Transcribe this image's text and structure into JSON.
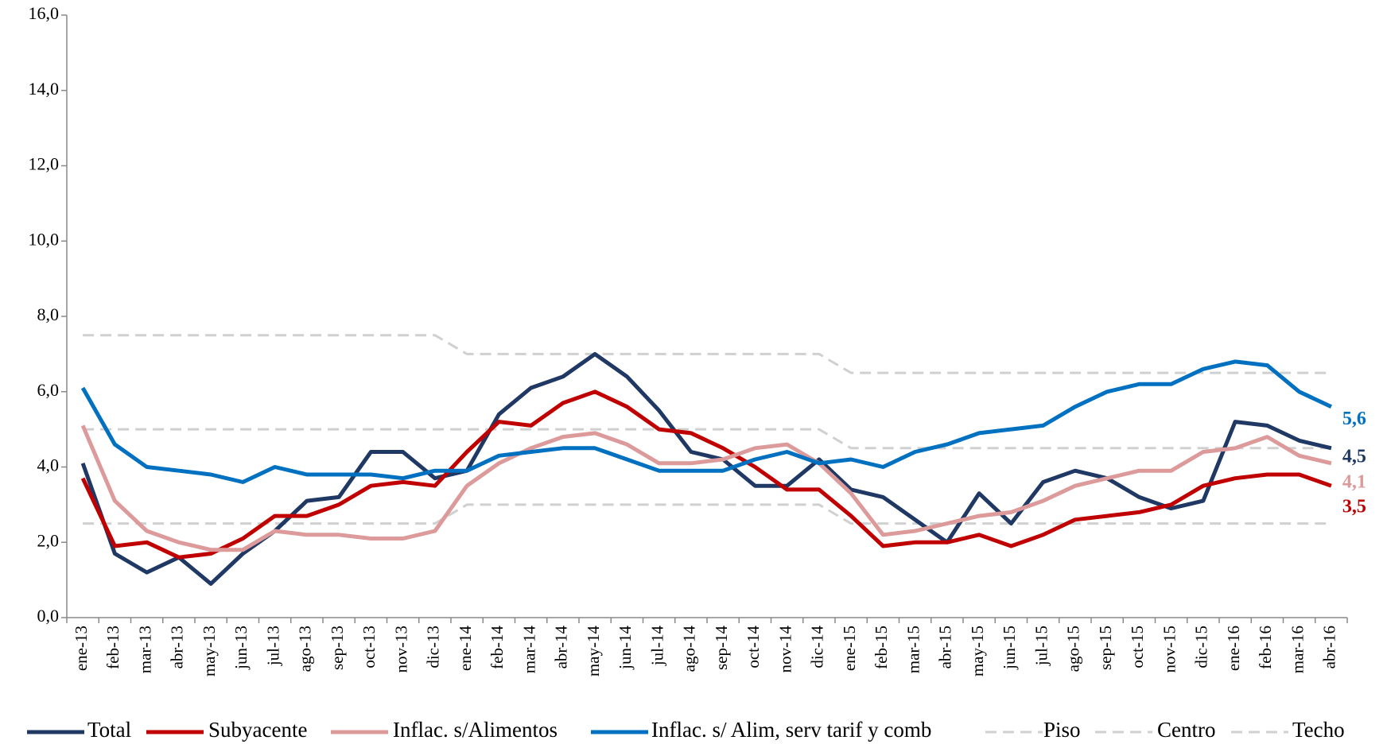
{
  "chart_data": {
    "type": "line",
    "categories": [
      "ene-13",
      "feb-13",
      "mar-13",
      "abr-13",
      "may-13",
      "jun-13",
      "jul-13",
      "ago-13",
      "sep-13",
      "oct-13",
      "nov-13",
      "dic-13",
      "ene-14",
      "feb-14",
      "mar-14",
      "abr-14",
      "may-14",
      "jun-14",
      "jul-14",
      "ago-14",
      "sep-14",
      "oct-14",
      "nov-14",
      "dic-14",
      "ene-15",
      "feb-15",
      "mar-15",
      "abr-15",
      "may-15",
      "jun-15",
      "jul-15",
      "ago-15",
      "sep-15",
      "oct-15",
      "nov-15",
      "dic-15",
      "ene-16",
      "feb-16",
      "mar-16",
      "abr-16"
    ],
    "ylim": [
      0,
      16
    ],
    "yticks": [
      {
        "value": 0,
        "label": "0,0"
      },
      {
        "value": 2,
        "label": "2,0"
      },
      {
        "value": 4,
        "label": "4,0"
      },
      {
        "value": 6,
        "label": "6,0"
      },
      {
        "value": 8,
        "label": "8,0"
      },
      {
        "value": 10,
        "label": "10,0"
      },
      {
        "value": 12,
        "label": "12,0"
      },
      {
        "value": 14,
        "label": "14,0"
      },
      {
        "value": 16,
        "label": "16,0"
      }
    ],
    "series": [
      {
        "name": "Total",
        "color": "#1f3864",
        "values": [
          4.1,
          1.7,
          1.2,
          1.6,
          0.9,
          1.7,
          2.3,
          3.1,
          3.2,
          4.4,
          4.4,
          3.7,
          3.9,
          5.4,
          6.1,
          6.4,
          7.0,
          6.4,
          5.5,
          4.4,
          4.2,
          3.5,
          3.5,
          4.2,
          3.4,
          3.2,
          2.6,
          2.0,
          3.3,
          2.5,
          3.6,
          3.9,
          3.7,
          3.2,
          2.9,
          3.1,
          5.2,
          5.1,
          4.7,
          4.5
        ],
        "value_labels": [
          null,
          null,
          null,
          null,
          null,
          null,
          null,
          null,
          null,
          null,
          null,
          null,
          null,
          null,
          null,
          null,
          null,
          null,
          null,
          null,
          null,
          null,
          null,
          null,
          null,
          null,
          null,
          null,
          null,
          null,
          null,
          null,
          null,
          null,
          null,
          null,
          null,
          null,
          null,
          "4,5"
        ]
      },
      {
        "name": "Subyacente",
        "color": "#c00000",
        "values": [
          3.7,
          1.9,
          2.0,
          1.6,
          1.7,
          2.1,
          2.7,
          2.7,
          3.0,
          3.5,
          3.6,
          3.5,
          4.4,
          5.2,
          5.1,
          5.7,
          6.0,
          5.6,
          5.0,
          4.9,
          4.5,
          4.0,
          3.4,
          3.4,
          2.7,
          1.9,
          2.0,
          2.0,
          2.2,
          1.9,
          2.2,
          2.6,
          2.7,
          2.8,
          3.0,
          3.5,
          3.7,
          3.8,
          3.8,
          3.5
        ],
        "value_labels": [
          null,
          null,
          null,
          null,
          null,
          null,
          null,
          null,
          null,
          null,
          null,
          null,
          null,
          null,
          null,
          null,
          null,
          null,
          null,
          null,
          null,
          null,
          null,
          null,
          null,
          null,
          null,
          null,
          null,
          null,
          null,
          null,
          null,
          null,
          null,
          null,
          null,
          null,
          null,
          "3,5"
        ]
      },
      {
        "name": "Inflac. s/Alimentos",
        "color": "#dc9a9a",
        "values": [
          5.1,
          3.1,
          2.3,
          2.0,
          1.8,
          1.8,
          2.3,
          2.2,
          2.2,
          2.1,
          2.1,
          2.3,
          3.5,
          4.1,
          4.5,
          4.8,
          4.9,
          4.6,
          4.1,
          4.1,
          4.2,
          4.5,
          4.6,
          4.1,
          3.3,
          2.2,
          2.3,
          2.5,
          2.7,
          2.8,
          3.1,
          3.5,
          3.7,
          3.9,
          3.9,
          4.4,
          4.5,
          4.8,
          4.3,
          4.1
        ],
        "value_labels": [
          null,
          null,
          null,
          null,
          null,
          null,
          null,
          null,
          null,
          null,
          null,
          null,
          null,
          null,
          null,
          null,
          null,
          null,
          null,
          null,
          null,
          null,
          null,
          null,
          null,
          null,
          null,
          null,
          null,
          null,
          null,
          null,
          null,
          null,
          null,
          null,
          null,
          null,
          null,
          "4,1"
        ]
      },
      {
        "name": "Inflac. s/ Alim, serv tarif y comb",
        "color": "#0070c0",
        "values": [
          6.1,
          4.6,
          4.0,
          3.9,
          3.8,
          3.6,
          4.0,
          3.8,
          3.8,
          3.8,
          3.7,
          3.9,
          3.9,
          4.3,
          4.4,
          4.5,
          4.5,
          4.2,
          3.9,
          3.9,
          3.9,
          4.2,
          4.4,
          4.1,
          4.2,
          4.0,
          4.4,
          4.6,
          4.9,
          5.0,
          5.1,
          5.6,
          6.0,
          6.2,
          6.2,
          6.6,
          6.8,
          6.7,
          6.0,
          5.6
        ],
        "value_labels": [
          null,
          null,
          null,
          null,
          null,
          null,
          null,
          null,
          null,
          null,
          null,
          null,
          null,
          null,
          null,
          null,
          null,
          null,
          null,
          null,
          null,
          null,
          null,
          null,
          null,
          null,
          null,
          null,
          null,
          null,
          null,
          null,
          null,
          null,
          null,
          null,
          null,
          null,
          null,
          "5,6"
        ]
      },
      {
        "name": "Piso",
        "color": "#d0d0d0",
        "dashed": true,
        "values": [
          2.5,
          2.5,
          2.5,
          2.5,
          2.5,
          2.5,
          2.5,
          2.5,
          2.5,
          2.5,
          2.5,
          2.5,
          3.0,
          3.0,
          3.0,
          3.0,
          3.0,
          3.0,
          3.0,
          3.0,
          3.0,
          3.0,
          3.0,
          3.0,
          2.5,
          2.5,
          2.5,
          2.5,
          2.5,
          2.5,
          2.5,
          2.5,
          2.5,
          2.5,
          2.5,
          2.5,
          2.5,
          2.5,
          2.5,
          2.5
        ]
      },
      {
        "name": "Centro",
        "color": "#d0d0d0",
        "dashed": true,
        "values": [
          5.0,
          5.0,
          5.0,
          5.0,
          5.0,
          5.0,
          5.0,
          5.0,
          5.0,
          5.0,
          5.0,
          5.0,
          5.0,
          5.0,
          5.0,
          5.0,
          5.0,
          5.0,
          5.0,
          5.0,
          5.0,
          5.0,
          5.0,
          5.0,
          4.5,
          4.5,
          4.5,
          4.5,
          4.5,
          4.5,
          4.5,
          4.5,
          4.5,
          4.5,
          4.5,
          4.5,
          4.5,
          4.5,
          4.5,
          4.5
        ]
      },
      {
        "name": "Techo",
        "color": "#d0d0d0",
        "dashed": true,
        "values": [
          7.5,
          7.5,
          7.5,
          7.5,
          7.5,
          7.5,
          7.5,
          7.5,
          7.5,
          7.5,
          7.5,
          7.5,
          7.0,
          7.0,
          7.0,
          7.0,
          7.0,
          7.0,
          7.0,
          7.0,
          7.0,
          7.0,
          7.0,
          7.0,
          6.5,
          6.5,
          6.5,
          6.5,
          6.5,
          6.5,
          6.5,
          6.5,
          6.5,
          6.5,
          6.5,
          6.5,
          6.5,
          6.5,
          6.5,
          6.5
        ]
      }
    ]
  }
}
